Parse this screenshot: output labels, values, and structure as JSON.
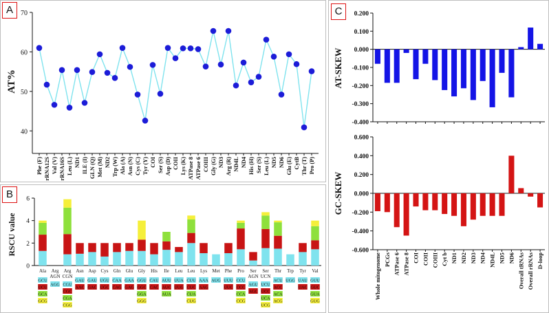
{
  "panels": {
    "a": "A",
    "b": "B",
    "c": "C"
  },
  "chart_data": [
    {
      "id": "A",
      "type": "line",
      "ylabel": "AT%",
      "ylim": [
        35,
        70
      ],
      "yticks": [
        40,
        50,
        60,
        70
      ],
      "line_color": "#7fe3ee",
      "marker_color": "#1c1cd8",
      "categories": [
        "Phe (F)",
        "rRNA12S",
        "Val (V)",
        "rRNA16S",
        "Leu (L)",
        "ND1",
        "ILE (I)",
        "GLN (Q)",
        "Met (M)",
        "ND2",
        "Trp (W)",
        "Ala (A)",
        "Asn (N)",
        "Cys (C)",
        "Tyr (Y)",
        "COI",
        "Ser (S)",
        "Asp (D)",
        "COII",
        "Lys (K)",
        "ATPase 8",
        "ATPase 6",
        "COIII",
        "Gly (G)",
        "ND3",
        "Arg (R)",
        "ND4L",
        "ND4",
        "His (H)",
        "Ser (S)",
        "Leu (L)",
        "ND5",
        "ND6",
        "Glu (E)",
        "CytB",
        "Thr (T)",
        "Pro (P)"
      ],
      "values": [
        61,
        51.7,
        46.6,
        55.4,
        45.9,
        55.4,
        47.1,
        54.9,
        59.4,
        54.7,
        53.4,
        61,
        56.2,
        49.2,
        42.6,
        56.7,
        49.4,
        61,
        58.4,
        60.9,
        60.9,
        60.7,
        56.3,
        65.3,
        56.8,
        65.3,
        51.5,
        57.3,
        52.3,
        53.7,
        63.1,
        58.8,
        49.2,
        59.4,
        56.9,
        40.9,
        55.1
      ]
    },
    {
      "id": "B",
      "type": "bar",
      "stacked": true,
      "ylabel": "RSCU value",
      "ylim": [
        0,
        6
      ],
      "yticks": [
        0,
        2,
        4,
        6
      ],
      "colors": [
        "#7fe3ee",
        "#c81414",
        "#8ee03c",
        "#f5ef3a"
      ],
      "categories": [
        "Ala",
        "Arg AGN",
        "Arg CGN",
        "Asn",
        "Asp",
        "Cys",
        "Gln",
        "Glu",
        "Gly",
        "His",
        "Ile",
        "Leu",
        "Leu",
        "Lys",
        "Met",
        "Phe",
        "Pro",
        "Ser AGN",
        "Ser UCN",
        "Thr",
        "Trp",
        "Tyr",
        "Val"
      ],
      "series": [
        {
          "name": "codon 1",
          "values": [
            1.3,
            0,
            1,
            1.05,
            1.2,
            0.8,
            1.2,
            1.3,
            1.3,
            1,
            1.4,
            1.2,
            2,
            1.1,
            1,
            1.1,
            1.45,
            0.45,
            1.55,
            1.5,
            1,
            1.2,
            1.45
          ]
        },
        {
          "name": "codon 2",
          "values": [
            1.45,
            0,
            1.8,
            0.95,
            0.8,
            1.2,
            0.8,
            0.7,
            1,
            1,
            0.75,
            0.45,
            0.9,
            0.9,
            0,
            0.9,
            1.85,
            0.75,
            1.7,
            1.15,
            0,
            0.8,
            0.8
          ]
        },
        {
          "name": "codon 3",
          "values": [
            1.05,
            0,
            2.35,
            0,
            0,
            0,
            0,
            0,
            0,
            0,
            0.85,
            0,
            1.2,
            0,
            0,
            0,
            0.5,
            0,
            1.2,
            1.2,
            0,
            0,
            1.25
          ]
        },
        {
          "name": "codon 4",
          "values": [
            0.2,
            0,
            0.75,
            0,
            0,
            0,
            0,
            0,
            1.7,
            0,
            0,
            0,
            0.35,
            0,
            0,
            0,
            0.2,
            0,
            0.3,
            0.15,
            0,
            0,
            0.5
          ]
        }
      ],
      "codon_labels": [
        [
          "GCU",
          "UCU",
          "GCA",
          "GCG"
        ],
        [
          "AGG"
        ],
        [
          "CGU",
          "CGC",
          "CGA",
          "CGG"
        ],
        [
          "GAU",
          "AAC"
        ],
        [
          "GAU",
          "GAC"
        ],
        [
          "UGU",
          "UGC"
        ],
        [
          "CAA",
          "CAG"
        ],
        [
          "GAA",
          "GAG"
        ],
        [
          "GGU",
          "GGC",
          "GGA",
          "GGG"
        ],
        [
          "CAU",
          "CAC"
        ],
        [
          "AUU",
          "AUC",
          "AUA"
        ],
        [
          "UUA",
          "UUG"
        ],
        [
          "CUU",
          "CUC",
          "CUA",
          "CUG"
        ],
        [
          "AAA",
          "AAG"
        ],
        [
          "AUG"
        ],
        [
          "UUU",
          "UUC"
        ],
        [
          "CCU",
          "CCC",
          "CCA",
          "CCG"
        ],
        [
          "AGU",
          "AGC"
        ],
        [
          "UCU",
          "UCC",
          "UCA",
          "UCG"
        ],
        [
          "ACU",
          "ACC",
          "ACA",
          "ACG"
        ],
        [
          "UGG"
        ],
        [
          "UAU",
          "UAC"
        ],
        [
          "GUU",
          "GUC",
          "GUA",
          "GUG"
        ]
      ]
    },
    {
      "id": "C-top",
      "type": "bar",
      "ylabel": "AT-SKEW",
      "ylim": [
        -0.4,
        0.2
      ],
      "yticks": [
        0.2,
        0.1,
        0.0,
        -0.1,
        -0.2,
        -0.3,
        -0.4
      ],
      "ytick_labels": [
        "0.200",
        "0.100",
        "0.000",
        "-0.100",
        "-0.200",
        "-0.300",
        "-0.400"
      ],
      "color": "#1414e6",
      "categories": [
        "Whole mitogenome",
        "PCGs",
        "ATPase 6",
        "ATPase 8",
        "COI",
        "COII",
        "COIII",
        "Cyt b",
        "ND1",
        "ND2",
        "ND3",
        "ND4",
        "ND4L",
        "ND5",
        "ND6",
        "Overall tRNAs",
        "Overall rRNAs",
        "D-loop"
      ],
      "values": [
        -0.08,
        -0.185,
        -0.185,
        -0.02,
        -0.165,
        -0.08,
        -0.17,
        -0.225,
        -0.26,
        -0.215,
        -0.28,
        -0.175,
        -0.32,
        -0.13,
        -0.265,
        0.012,
        0.12,
        0.03
      ]
    },
    {
      "id": "C-bottom",
      "type": "bar",
      "ylabel": "GC-SKEW",
      "ylim": [
        -0.6,
        0.6
      ],
      "yticks": [
        0.6,
        0.4,
        0.2,
        0.0,
        -0.2,
        -0.4,
        -0.6
      ],
      "ytick_labels": [
        "0.600",
        "0.400",
        "0.200",
        "0.000",
        "-0.200",
        "-0.400",
        "-0.600"
      ],
      "color": "#d41414",
      "categories": [
        "Whole mitogenome",
        "PCGs",
        "ATPase 6",
        "ATPase 8",
        "COI",
        "COII",
        "COIII",
        "Cyt b",
        "ND1",
        "ND2",
        "ND3",
        "ND4",
        "ND4L",
        "ND5",
        "ND6",
        "Overall tRNAs",
        "Overall rRNAs",
        "D-loop"
      ],
      "values": [
        -0.19,
        -0.2,
        -0.36,
        -0.45,
        -0.14,
        -0.18,
        -0.18,
        -0.22,
        -0.24,
        -0.35,
        -0.28,
        -0.24,
        -0.24,
        -0.24,
        0.4,
        0.055,
        -0.035,
        -0.15
      ]
    }
  ]
}
